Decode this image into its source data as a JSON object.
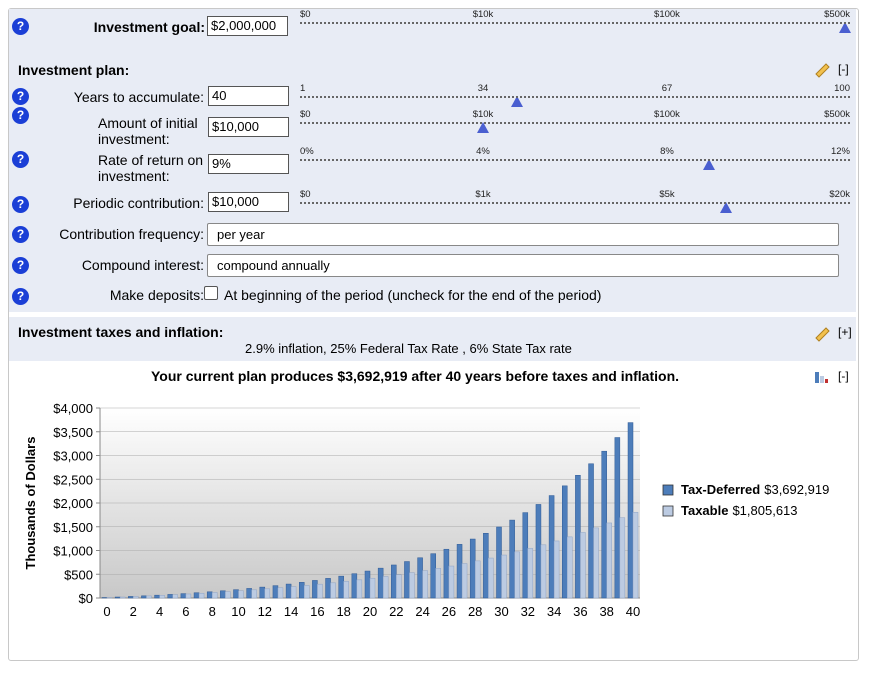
{
  "help_icon": "?",
  "goal": {
    "label": "Investment goal:",
    "value": "$2,000,000",
    "ticks": [
      "$0",
      "$10k",
      "$100k",
      "$500k"
    ]
  },
  "plan": {
    "title": "Investment plan:",
    "toggle": "[-]",
    "sliders": [
      {
        "label": "Years to accumulate:",
        "value": "40",
        "ticks": [
          "1",
          "34",
          "67",
          "100"
        ]
      },
      {
        "label": "Amount of initial investment:",
        "value": "$10,000",
        "ticks": [
          "$0",
          "$10k",
          "$100k",
          "$500k"
        ]
      },
      {
        "label": "Rate of return on investment:",
        "value": "9%",
        "ticks": [
          "0%",
          "4%",
          "8%",
          "12%"
        ]
      },
      {
        "label": "Periodic contribution:",
        "value": "$10,000",
        "ticks": [
          "$0",
          "$1k",
          "$5k",
          "$20k"
        ]
      }
    ],
    "selects": [
      {
        "label": "Contribution frequency:",
        "value": "per year"
      },
      {
        "label": "Compound interest:",
        "value": "compound annually"
      }
    ],
    "deposit": {
      "label": "Make deposits:",
      "text": "At beginning of the period (uncheck for the end of the period)"
    }
  },
  "taxes": {
    "title": "Investment taxes and inflation:",
    "toggle": "[+]",
    "summary": "2.9% inflation, 25% Federal Tax Rate , 6% State Tax rate"
  },
  "chart_data": {
    "type": "bar",
    "title": "Your current plan produces $3,692,919 after 40 years before taxes and inflation.",
    "toggle": "[-]",
    "y_label": "Thousands of Dollars",
    "categories": [
      0,
      null,
      2,
      null,
      4,
      null,
      6,
      null,
      8,
      null,
      10,
      null,
      12,
      null,
      14,
      null,
      16,
      null,
      18,
      null,
      20,
      null,
      22,
      null,
      24,
      null,
      26,
      null,
      28,
      null,
      30,
      null,
      32,
      null,
      34,
      null,
      36,
      null,
      38,
      null,
      40
    ],
    "series": [
      {
        "name": "Tax-Deferred",
        "total": "$3,692,919",
        "color": "#4d7dba",
        "values": [
          10,
          20.9,
          32.8,
          45.7,
          59.8,
          75.2,
          92.0,
          110.3,
          130.2,
          151.9,
          175.6,
          201.4,
          229.5,
          260.2,
          293.6,
          330.0,
          369.7,
          413.0,
          460.2,
          511.6,
          567.6,
          628.7,
          695.3,
          767.9,
          847.0,
          933.2,
          1027.2,
          1129.7,
          1241.4,
          1363.1,
          1495.8,
          1640.4,
          1798.0,
          1969.8,
          2157.1,
          2361.2,
          2583.7,
          2826.3,
          3090.7,
          3378.8,
          3692.9
        ]
      },
      {
        "name": "Taxable",
        "total": "$1,805,613",
        "color": "#bccbe2",
        "values": [
          10,
          20.6,
          31.9,
          44.0,
          56.8,
          70.4,
          84.8,
          100.2,
          116.6,
          134.0,
          152.5,
          172.2,
          193.1,
          215.4,
          239.0,
          264.2,
          291.0,
          319.5,
          349.7,
          381.9,
          416.2,
          452.6,
          491.4,
          532.6,
          576.4,
          623.0,
          672.5,
          725.2,
          781.3,
          840.9,
          904.3,
          971.7,
          1043.4,
          1119.7,
          1200.8,
          1287.0,
          1378.8,
          1476.3,
          1580.0,
          1690.4,
          1805.6
        ]
      }
    ],
    "ylim": [
      0,
      4000
    ],
    "yticks": [
      {
        "value": 0,
        "label": "$0"
      },
      {
        "value": 500,
        "label": "$500"
      },
      {
        "value": 1000,
        "label": "$1,000"
      },
      {
        "value": 1500,
        "label": "$1,500"
      },
      {
        "value": 2000,
        "label": "$2,000"
      },
      {
        "value": 2500,
        "label": "$2,500"
      },
      {
        "value": 3000,
        "label": "$3,000"
      },
      {
        "value": 3500,
        "label": "$3,500"
      },
      {
        "value": 4000,
        "label": "$4,000"
      }
    ],
    "grid": true
  }
}
